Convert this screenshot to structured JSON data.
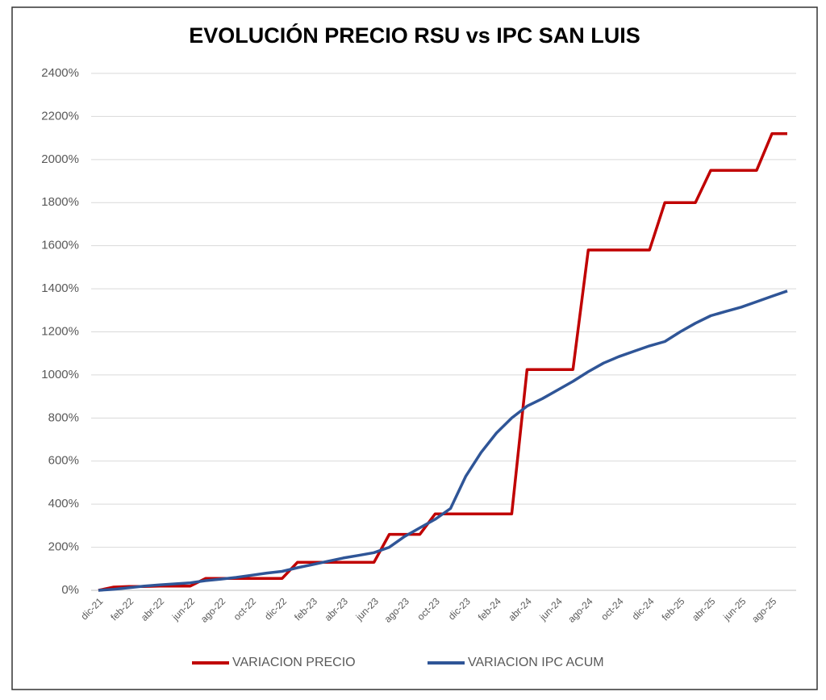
{
  "chart_data": {
    "type": "line",
    "title": "EVOLUCIÓN PRECIO RSU vs IPC SAN LUIS",
    "categories": [
      "dic-21",
      null,
      "feb-22",
      null,
      "abr-22",
      null,
      "jun-22",
      null,
      "ago-22",
      null,
      "oct-22",
      null,
      "dic-22",
      null,
      "feb-23",
      null,
      "abr-23",
      null,
      "jun-23",
      null,
      "ago-23",
      null,
      "oct-23",
      null,
      "dic-23",
      null,
      "feb-24",
      null,
      "abr-24",
      null,
      "jun-24",
      null,
      "ago-24",
      null,
      "oct-24",
      null,
      "dic-24",
      null,
      "feb-25",
      null,
      "abr-25",
      null,
      "jun-25",
      null,
      "ago-25",
      null
    ],
    "series": [
      {
        "name": "VARIACION PRECIO",
        "color": "#c00000",
        "values": [
          0,
          15,
          18,
          18,
          20,
          20,
          20,
          55,
          55,
          55,
          55,
          55,
          55,
          130,
          130,
          130,
          130,
          130,
          130,
          260,
          260,
          260,
          355,
          355,
          355,
          355,
          355,
          355,
          1025,
          1025,
          1025,
          1025,
          1580,
          1580,
          1580,
          1580,
          1580,
          1800,
          1800,
          1800,
          1950,
          1950,
          1950,
          1950,
          2120,
          2120
        ]
      },
      {
        "name": "VARIACION IPC ACUM",
        "color": "#2f5597",
        "values": [
          0,
          5,
          12,
          20,
          25,
          30,
          35,
          45,
          52,
          60,
          70,
          80,
          88,
          105,
          120,
          135,
          150,
          162,
          175,
          200,
          250,
          290,
          330,
          380,
          530,
          640,
          730,
          800,
          855,
          890,
          930,
          970,
          1015,
          1055,
          1085,
          1110,
          1135,
          1155,
          1200,
          1240,
          1275,
          1295,
          1315,
          1340,
          1365,
          1390
        ]
      }
    ],
    "ylim": [
      0,
      2400
    ],
    "yticks": [
      {
        "value": 0,
        "label": "0%"
      },
      {
        "value": 200,
        "label": "200%"
      },
      {
        "value": 400,
        "label": "400%"
      },
      {
        "value": 600,
        "label": "600%"
      },
      {
        "value": 800,
        "label": "800%"
      },
      {
        "value": 1000,
        "label": "1000%"
      },
      {
        "value": 1200,
        "label": "1200%"
      },
      {
        "value": 1400,
        "label": "1400%"
      },
      {
        "value": 1600,
        "label": "1600%"
      },
      {
        "value": 1800,
        "label": "1800%"
      },
      {
        "value": 2000,
        "label": "2000%"
      },
      {
        "value": 2200,
        "label": "2200%"
      },
      {
        "value": 2400,
        "label": "2400%"
      }
    ],
    "grid": true,
    "legend": "bottom"
  }
}
